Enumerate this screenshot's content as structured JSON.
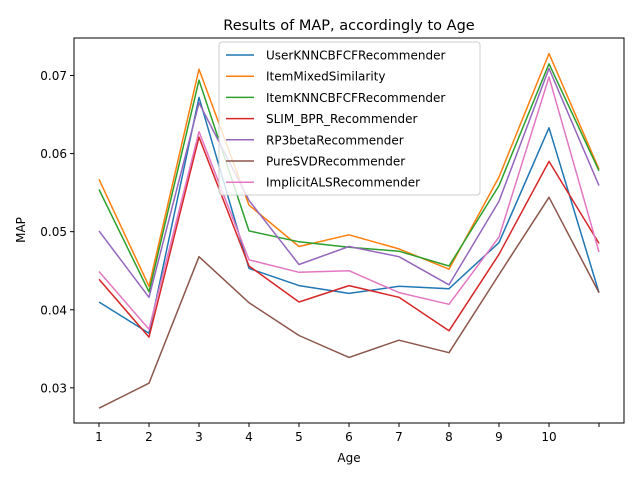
{
  "chart_data": {
    "type": "line",
    "title": "Results of MAP, accordingly to Age",
    "xlabel": "Age",
    "ylabel": "MAP",
    "x": [
      1,
      2,
      3,
      4,
      5,
      6,
      7,
      8,
      9,
      10,
      11
    ],
    "x_tick_labels": [
      "1",
      "2",
      "3",
      "4",
      "5",
      "6",
      "7",
      "8",
      "9",
      "10",
      ""
    ],
    "xlim": [
      0.5,
      11.5
    ],
    "ylim": [
      0.0255,
      0.0748
    ],
    "y_ticks": [
      0.03,
      0.04,
      0.05,
      0.06,
      0.07
    ],
    "y_tick_labels": [
      "0.03",
      "0.04",
      "0.05",
      "0.06",
      "0.07"
    ],
    "grid": false,
    "legend_position": "top-center",
    "series": [
      {
        "name": "UserKNNCBFCFRecommender",
        "color": "#1f77b4",
        "values": [
          0.041,
          0.037,
          0.0672,
          0.0453,
          0.0431,
          0.0421,
          0.043,
          0.0427,
          0.0486,
          0.0633,
          0.0422
        ]
      },
      {
        "name": "ItemMixedSimilarity",
        "color": "#ff7f0e",
        "values": [
          0.0567,
          0.043,
          0.0708,
          0.0534,
          0.0481,
          0.0496,
          0.0478,
          0.0452,
          0.057,
          0.0728,
          0.058
        ]
      },
      {
        "name": "ItemKNNCBFCFRecommender",
        "color": "#2ca02c",
        "values": [
          0.0554,
          0.0423,
          0.0694,
          0.0501,
          0.0487,
          0.048,
          0.0475,
          0.0456,
          0.0559,
          0.0715,
          0.0578
        ]
      },
      {
        "name": "SLIM_BPR_Recommender",
        "color": "#d62728",
        "values": [
          0.0439,
          0.0365,
          0.0621,
          0.0456,
          0.041,
          0.0431,
          0.0416,
          0.0373,
          0.0471,
          0.059,
          0.0485
        ]
      },
      {
        "name": "RP3betaRecommender",
        "color": "#9467bd",
        "values": [
          0.0501,
          0.0416,
          0.0665,
          0.054,
          0.0458,
          0.0481,
          0.0468,
          0.0432,
          0.0539,
          0.0709,
          0.0559
        ]
      },
      {
        "name": "PureSVDRecommender",
        "color": "#8c564b",
        "values": [
          0.0274,
          0.0306,
          0.0468,
          0.0409,
          0.0367,
          0.0339,
          0.0361,
          0.0345,
          0.0445,
          0.0544,
          0.0422
        ]
      },
      {
        "name": "ImplicitALSRecommender",
        "color": "#e377c2",
        "values": [
          0.0449,
          0.0375,
          0.0628,
          0.0464,
          0.0448,
          0.045,
          0.0422,
          0.0407,
          0.0493,
          0.0698,
          0.0474
        ]
      }
    ]
  }
}
